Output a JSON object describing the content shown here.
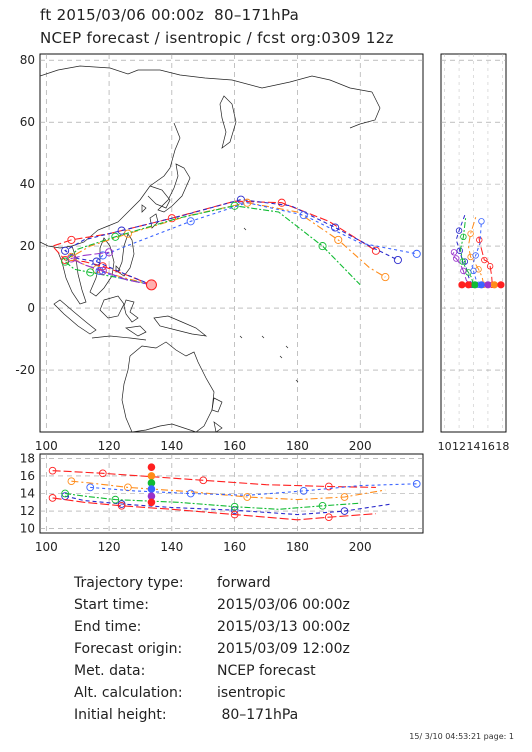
{
  "header": {
    "line1": "ft 2015/03/06 00:00z  80–171hPa",
    "line2": "NCEP forecast / isentropic / fcst org:0309 12z"
  },
  "info": [
    {
      "key": "Trajectory type:",
      "value": "forward"
    },
    {
      "key": "Start time:",
      "value": "2015/03/06 00:00z"
    },
    {
      "key": "End time:",
      "value": "2015/03/13 00:00z"
    },
    {
      "key": "Forecast origin:",
      "value": "2015/03/09 12:00z"
    },
    {
      "key": "Met. data:",
      "value": "NCEP forecast"
    },
    {
      "key": "Alt. calculation:",
      "value": "isentropic"
    },
    {
      "key": "Initial height:",
      "value": " 80–171hPa"
    }
  ],
  "footer": "15/ 3/10 04:53:21 page: 1",
  "chart_data": [
    {
      "type": "line",
      "name": "map",
      "xlabel": "",
      "ylabel": "",
      "xlim": [
        98,
        220
      ],
      "ylim": [
        -40,
        82
      ],
      "xticks": [
        "100",
        "120",
        "140",
        "160",
        "180",
        "200"
      ],
      "yticks": [
        "-20",
        "0",
        "20",
        "40",
        "60",
        "80"
      ],
      "series": [
        {
          "color": "#ff2020",
          "x": [
            133.5,
            126,
            118,
            112,
            106,
            102,
            108,
            120,
            140,
            160,
            175,
            190,
            205
          ],
          "y": [
            7.5,
            10.5,
            13.5,
            15,
            15.5,
            20,
            22,
            24,
            29,
            34.5,
            34,
            28,
            18.5
          ]
        },
        {
          "color": "#2a2acc",
          "x": [
            133.5,
            125,
            116,
            110,
            106,
            112,
            124,
            144,
            162,
            178,
            192,
            205,
            212
          ],
          "y": [
            7.5,
            11,
            15,
            16,
            18.5,
            22,
            25,
            30,
            35,
            33,
            26,
            19,
            15.5
          ]
        },
        {
          "color": "#ff8c1a",
          "x": [
            133.5,
            124,
            116,
            111,
            108,
            114,
            126,
            146,
            164,
            180,
            193,
            203,
            208
          ],
          "y": [
            7.5,
            10,
            12.5,
            14.5,
            16.5,
            20,
            24,
            30,
            34,
            31,
            22,
            13,
            10
          ]
        },
        {
          "color": "#11bb33",
          "x": [
            133.5,
            122,
            114,
            109,
            106,
            110,
            122,
            142,
            160,
            174,
            188,
            200
          ],
          "y": [
            7.5,
            10,
            11.5,
            12.5,
            15,
            19,
            23,
            29,
            33,
            31,
            20,
            7.5
          ]
        },
        {
          "color": "#3a64ff",
          "x": [
            133.5,
            124,
            117,
            114,
            118,
            128,
            146,
            164,
            182,
            200,
            218
          ],
          "y": [
            7.5,
            9.5,
            12,
            13.5,
            17,
            21,
            28,
            34,
            30,
            21,
            17.5
          ]
        },
        {
          "color": "#9933cc",
          "x": [
            133.5,
            126,
            118,
            112,
            108,
            112,
            120
          ],
          "y": [
            7.5,
            9,
            12,
            14,
            16,
            17,
            18
          ]
        }
      ]
    },
    {
      "type": "line",
      "name": "height vs longitude",
      "xlabel": "",
      "ylabel": "",
      "xlim": [
        98,
        220
      ],
      "ylim": [
        9.5,
        18.5
      ],
      "xticks": [
        "100",
        "120",
        "140",
        "160",
        "180",
        "200"
      ],
      "yticks": [
        "10",
        "12",
        "14",
        "16",
        "18"
      ],
      "series": [
        {
          "color": "#ff2020",
          "x": [
            102,
            108,
            118,
            130,
            150,
            170,
            190,
            205
          ],
          "y": [
            16.6,
            16.5,
            16.3,
            16,
            15.5,
            15,
            14.8,
            14.7
          ]
        },
        {
          "color": "#2a2acc",
          "x": [
            106,
            112,
            124,
            140,
            160,
            180,
            195,
            210
          ],
          "y": [
            13.7,
            13.2,
            12.8,
            12.4,
            12.1,
            11.6,
            12,
            12.8
          ]
        },
        {
          "color": "#ff8c1a",
          "x": [
            108,
            114,
            126,
            146,
            164,
            180,
            195,
            208
          ],
          "y": [
            15.4,
            15.2,
            14.7,
            14.2,
            13.6,
            13.3,
            13.6,
            14.4
          ]
        },
        {
          "color": "#11bb33",
          "x": [
            106,
            112,
            122,
            142,
            160,
            174,
            188,
            200
          ],
          "y": [
            14,
            13.7,
            13.3,
            13,
            12.5,
            12.2,
            12.6,
            12.9
          ]
        },
        {
          "color": "#3a64ff",
          "x": [
            114,
            128,
            146,
            164,
            182,
            200,
            218
          ],
          "y": [
            14.7,
            14.3,
            14,
            13.8,
            14.3,
            14.9,
            15.1
          ]
        },
        {
          "color": "#ff2020",
          "x": [
            102,
            112,
            124,
            140,
            160,
            180,
            190,
            205
          ],
          "y": [
            13.5,
            13,
            12.6,
            12.2,
            11.6,
            11,
            11.3,
            11.7
          ]
        }
      ]
    },
    {
      "type": "line",
      "name": "latitude vs height",
      "xlabel": "",
      "ylabel": "",
      "xticks": [
        "10",
        "12",
        "14",
        "16",
        "18"
      ]
    }
  ]
}
